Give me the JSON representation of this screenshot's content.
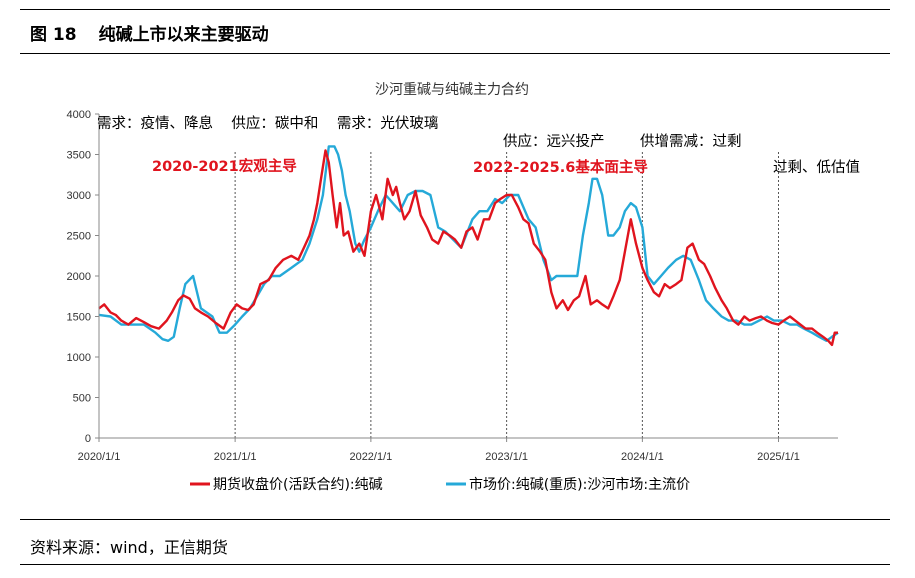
{
  "figure": {
    "number": "图 18",
    "title": "纯碱上市以来主要驱动",
    "source": "资料来源：wind，正信期货"
  },
  "chart_data": {
    "type": "line",
    "title": "沙河重碱与纯碱主力合约",
    "xlabel": "",
    "ylabel": "",
    "ylim": [
      0,
      4000
    ],
    "yticks": [
      "0",
      "500",
      "1000",
      "1500",
      "2000",
      "2500",
      "3000",
      "3500",
      "4000"
    ],
    "xlim": [
      "2020-01-01",
      "2025-06-10"
    ],
    "xticks": [
      "2020/1/1",
      "2021/1/1",
      "2022/1/1",
      "2023/1/1",
      "2024/1/1",
      "2025/1/1"
    ],
    "grid": false,
    "legend_position": "bottom",
    "colors": {
      "futures": "#e0141e",
      "spot": "#25a9d8",
      "divider": "#555555"
    },
    "series": [
      {
        "name": "期货收盘价(活跃合约):纯碱",
        "color": "#e0141e",
        "x": [
          "2020-01-01",
          "2020-01-15",
          "2020-02-01",
          "2020-02-15",
          "2020-03-01",
          "2020-03-20",
          "2020-04-10",
          "2020-05-01",
          "2020-05-20",
          "2020-06-10",
          "2020-07-01",
          "2020-07-15",
          "2020-08-01",
          "2020-08-15",
          "2020-09-01",
          "2020-09-15",
          "2020-10-01",
          "2020-10-20",
          "2020-11-10",
          "2020-12-01",
          "2020-12-20",
          "2021-01-05",
          "2021-01-20",
          "2021-02-05",
          "2021-02-20",
          "2021-03-10",
          "2021-04-01",
          "2021-04-20",
          "2021-05-10",
          "2021-06-01",
          "2021-06-20",
          "2021-07-05",
          "2021-07-20",
          "2021-08-01",
          "2021-08-10",
          "2021-08-20",
          "2021-09-01",
          "2021-09-10",
          "2021-09-20",
          "2021-10-01",
          "2021-10-10",
          "2021-10-20",
          "2021-11-01",
          "2021-11-15",
          "2021-12-01",
          "2021-12-15",
          "2022-01-01",
          "2022-01-15",
          "2022-02-01",
          "2022-02-15",
          "2022-03-01",
          "2022-03-10",
          "2022-03-20",
          "2022-04-01",
          "2022-04-15",
          "2022-05-01",
          "2022-05-15",
          "2022-06-01",
          "2022-06-15",
          "2022-07-01",
          "2022-07-15",
          "2022-08-01",
          "2022-08-15",
          "2022-09-01",
          "2022-09-15",
          "2022-10-01",
          "2022-10-15",
          "2022-11-01",
          "2022-11-15",
          "2022-12-01",
          "2022-12-15",
          "2023-01-01",
          "2023-01-15",
          "2023-02-01",
          "2023-02-15",
          "2023-03-01",
          "2023-03-15",
          "2023-04-01",
          "2023-04-15",
          "2023-05-01",
          "2023-05-15",
          "2023-06-01",
          "2023-06-15",
          "2023-07-01",
          "2023-07-15",
          "2023-08-01",
          "2023-08-15",
          "2023-09-01",
          "2023-09-15",
          "2023-10-01",
          "2023-10-15",
          "2023-11-01",
          "2023-11-15",
          "2023-12-01",
          "2023-12-15",
          "2024-01-01",
          "2024-01-15",
          "2024-02-01",
          "2024-02-15",
          "2024-03-01",
          "2024-03-15",
          "2024-04-01",
          "2024-04-15",
          "2024-05-01",
          "2024-05-15",
          "2024-06-01",
          "2024-06-15",
          "2024-07-01",
          "2024-07-15",
          "2024-08-01",
          "2024-08-15",
          "2024-09-01",
          "2024-09-15",
          "2024-10-01",
          "2024-10-15",
          "2024-11-01",
          "2024-11-15",
          "2024-12-01",
          "2024-12-15",
          "2025-01-01",
          "2025-01-15",
          "2025-02-01",
          "2025-02-15",
          "2025-03-01",
          "2025-03-15",
          "2025-04-01",
          "2025-04-15",
          "2025-05-01",
          "2025-05-15",
          "2025-05-25",
          "2025-06-01",
          "2025-06-10"
        ],
        "values": [
          1600,
          1650,
          1550,
          1520,
          1450,
          1400,
          1480,
          1430,
          1380,
          1350,
          1450,
          1550,
          1700,
          1760,
          1720,
          1600,
          1550,
          1500,
          1420,
          1350,
          1550,
          1650,
          1600,
          1580,
          1650,
          1900,
          1950,
          2100,
          2200,
          2250,
          2200,
          2350,
          2500,
          2700,
          2900,
          3200,
          3550,
          3400,
          3000,
          2600,
          2900,
          2500,
          2550,
          2300,
          2400,
          2250,
          2800,
          3000,
          2700,
          3200,
          3000,
          3100,
          2900,
          2700,
          2800,
          3050,
          2750,
          2600,
          2450,
          2400,
          2550,
          2500,
          2450,
          2350,
          2550,
          2600,
          2450,
          2700,
          2700,
          2900,
          2950,
          3000,
          3000,
          2850,
          2700,
          2650,
          2400,
          2300,
          2200,
          1800,
          1600,
          1700,
          1580,
          1700,
          1750,
          2000,
          1650,
          1700,
          1650,
          1600,
          1750,
          1950,
          2300,
          2700,
          2400,
          2100,
          1950,
          1800,
          1750,
          1900,
          1850,
          1900,
          1950,
          2350,
          2400,
          2200,
          2150,
          2000,
          1850,
          1700,
          1600,
          1450,
          1400,
          1500,
          1450,
          1480,
          1500,
          1450,
          1420,
          1400,
          1450,
          1500,
          1450,
          1400,
          1350,
          1350,
          1300,
          1250,
          1200,
          1150,
          1300,
          1300
        ]
      },
      {
        "name": "市场价:纯碱(重质):沙河市场:主流价",
        "color": "#25a9d8",
        "x": [
          "2020-01-01",
          "2020-02-01",
          "2020-03-01",
          "2020-04-01",
          "2020-05-01",
          "2020-06-01",
          "2020-06-20",
          "2020-07-05",
          "2020-07-20",
          "2020-08-05",
          "2020-08-20",
          "2020-09-10",
          "2020-10-01",
          "2020-11-01",
          "2020-11-20",
          "2020-12-10",
          "2021-01-01",
          "2021-01-20",
          "2021-02-10",
          "2021-03-01",
          "2021-03-20",
          "2021-04-10",
          "2021-05-01",
          "2021-06-01",
          "2021-07-01",
          "2021-07-20",
          "2021-08-10",
          "2021-08-25",
          "2021-09-10",
          "2021-09-25",
          "2021-10-05",
          "2021-10-15",
          "2021-10-25",
          "2021-11-05",
          "2021-11-20",
          "2021-12-01",
          "2021-12-15",
          "2022-01-01",
          "2022-01-20",
          "2022-02-10",
          "2022-03-01",
          "2022-03-20",
          "2022-04-10",
          "2022-05-01",
          "2022-05-20",
          "2022-06-10",
          "2022-07-01",
          "2022-07-20",
          "2022-08-10",
          "2022-09-01",
          "2022-10-01",
          "2022-10-20",
          "2022-11-10",
          "2022-12-01",
          "2022-12-20",
          "2023-01-10",
          "2023-02-01",
          "2023-03-01",
          "2023-03-20",
          "2023-04-10",
          "2023-05-01",
          "2023-05-15",
          "2023-06-01",
          "2023-06-20",
          "2023-07-10",
          "2023-07-25",
          "2023-08-10",
          "2023-08-20",
          "2023-09-01",
          "2023-09-15",
          "2023-10-01",
          "2023-10-15",
          "2023-11-01",
          "2023-11-15",
          "2023-12-01",
          "2023-12-15",
          "2024-01-01",
          "2024-01-15",
          "2024-02-01",
          "2024-02-20",
          "2024-03-10",
          "2024-04-01",
          "2024-04-20",
          "2024-05-10",
          "2024-06-01",
          "2024-06-20",
          "2024-07-10",
          "2024-08-01",
          "2024-08-20",
          "2024-09-10",
          "2024-10-01",
          "2024-10-20",
          "2024-11-10",
          "2024-12-01",
          "2024-12-20",
          "2025-01-10",
          "2025-02-01",
          "2025-02-20",
          "2025-03-10",
          "2025-04-01",
          "2025-04-20",
          "2025-05-10",
          "2025-05-25",
          "2025-06-10"
        ],
        "values": [
          1520,
          1500,
          1400,
          1400,
          1400,
          1300,
          1220,
          1200,
          1250,
          1600,
          1900,
          2000,
          1600,
          1500,
          1300,
          1300,
          1400,
          1500,
          1600,
          1750,
          1900,
          2000,
          2000,
          2100,
          2200,
          2400,
          2700,
          3000,
          3600,
          3600,
          3500,
          3300,
          3000,
          2800,
          2400,
          2300,
          2450,
          2600,
          2800,
          3000,
          2900,
          2800,
          3000,
          3050,
          3050,
          3000,
          2600,
          2550,
          2450,
          2350,
          2700,
          2800,
          2800,
          2950,
          2900,
          3000,
          3000,
          2700,
          2600,
          2200,
          1950,
          2000,
          2000,
          2000,
          2000,
          2500,
          2900,
          3200,
          3200,
          3000,
          2500,
          2500,
          2600,
          2800,
          2900,
          2850,
          2600,
          2000,
          1900,
          2000,
          2100,
          2200,
          2250,
          2200,
          1950,
          1700,
          1600,
          1500,
          1450,
          1450,
          1400,
          1400,
          1450,
          1500,
          1450,
          1450,
          1400,
          1400,
          1350,
          1300,
          1250,
          1200,
          1250,
          1300
        ]
      }
    ],
    "dividers": [
      "2021-01-01",
      "2022-01-01",
      "2023-01-01",
      "2024-01-01",
      "2025-01-01"
    ],
    "annotations": {
      "row1": "需求：疫情、降息    供应：碳中和    需求：光伏玻璃",
      "supply_2023": "供应：远兴投产",
      "supply_demand": "供增需减：过剩",
      "phase1": "2020-2021宏观主导",
      "phase2": "2022-2025.6基本面主导",
      "phase3": "过剩、低估值"
    }
  }
}
